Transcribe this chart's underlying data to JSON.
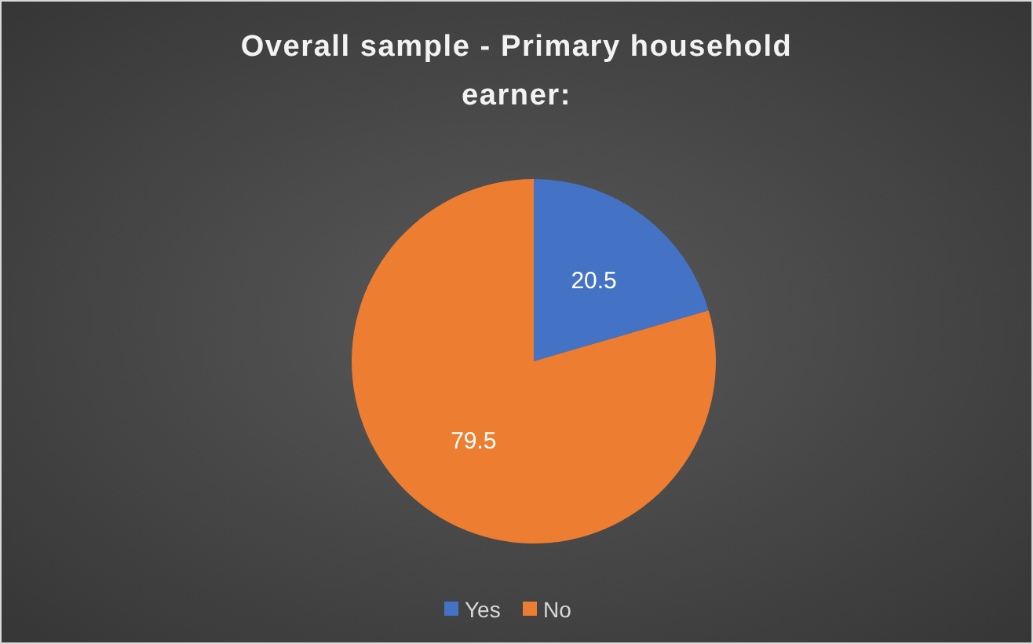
{
  "chart_data": {
    "type": "pie",
    "title": "Overall sample - Primary household earner:",
    "categories": [
      "Yes",
      "No"
    ],
    "values": [
      20.5,
      79.5
    ],
    "colors": [
      "#4472c4",
      "#ed7d31"
    ],
    "data_labels": true,
    "legend": "bottom"
  }
}
